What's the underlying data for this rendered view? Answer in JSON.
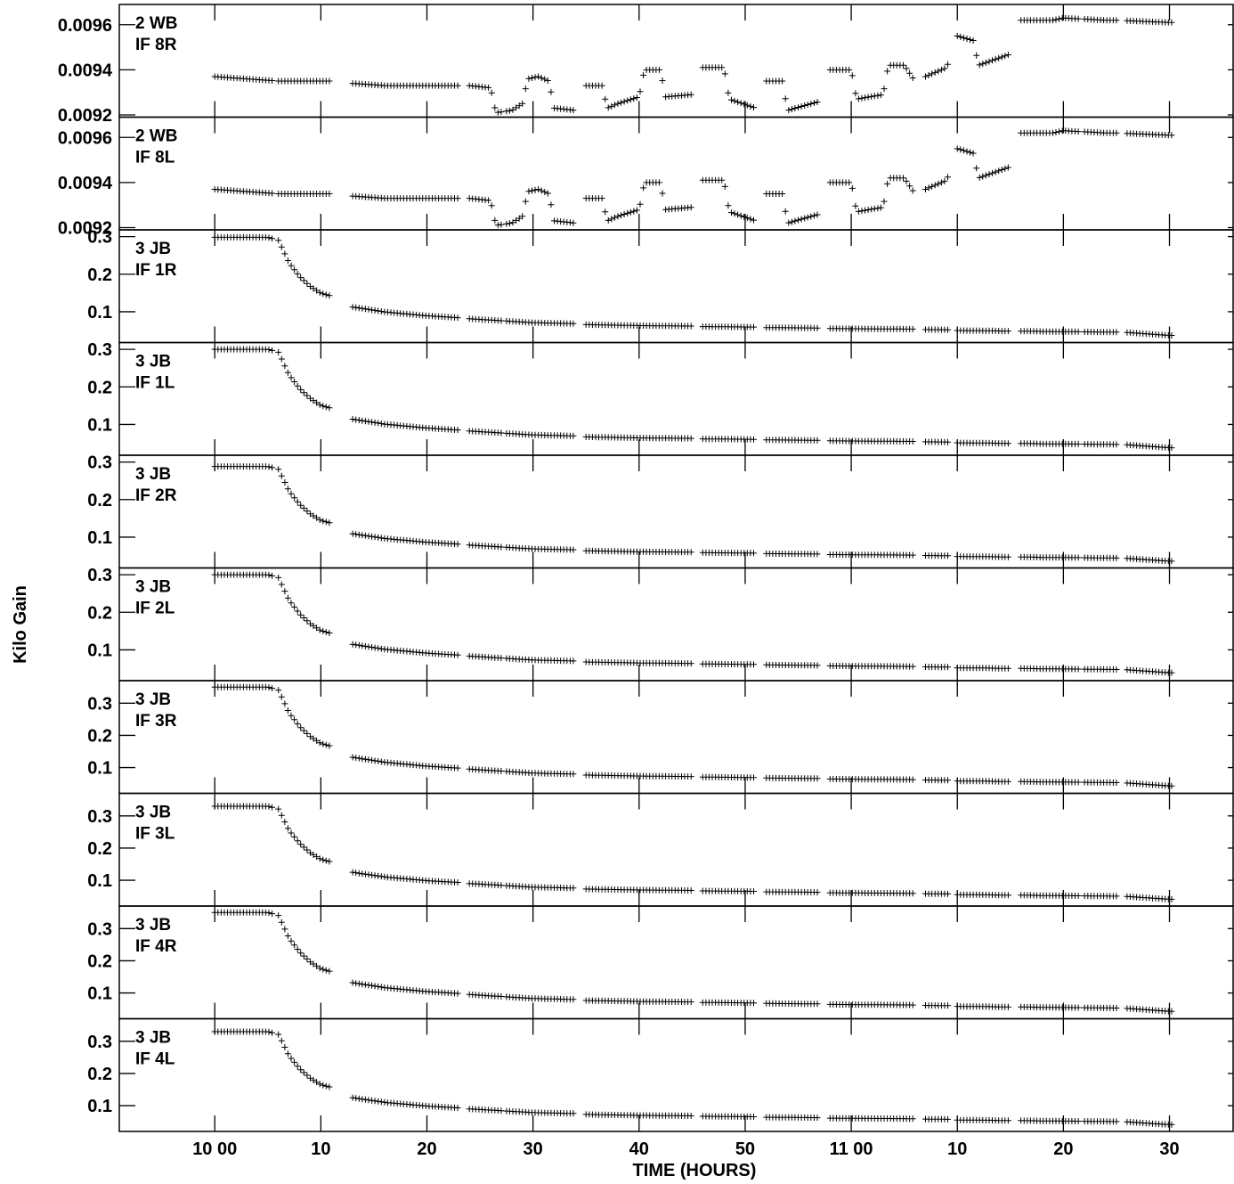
{
  "chart_data": {
    "type": "scatter",
    "marker": "plus",
    "xlabel": "TIME (HOURS)",
    "ylabel": "Kilo Gain",
    "x_range_minutes": [
      -6,
      60
    ],
    "x_ticks": [
      {
        "t": 0,
        "label": "10 00"
      },
      {
        "t": 10,
        "label": "10"
      },
      {
        "t": 20,
        "label": "20"
      },
      {
        "t": 30,
        "label": "30"
      },
      {
        "t": 40,
        "label": "40"
      },
      {
        "t": 50,
        "label": "50"
      },
      {
        "t": 60,
        "label": "11 00"
      },
      {
        "t": 70,
        "label": "10"
      },
      {
        "t": 80,
        "label": "20"
      },
      {
        "t": 90,
        "label": "30"
      }
    ],
    "x_range": [
      -9,
      96
    ],
    "panels": [
      {
        "label1": "2 WB",
        "label2": "IF 8R",
        "ylim": [
          0.00919,
          0.00969
        ],
        "yticks": [
          {
            "v": 0.0092,
            "label": "0.0092"
          },
          {
            "v": 0.0094,
            "label": "0.0094"
          },
          {
            "v": 0.0096,
            "label": "0.0096"
          }
        ],
        "profile": "wb"
      },
      {
        "label1": "2 WB",
        "label2": "IF 8L",
        "ylim": [
          0.00919,
          0.00969
        ],
        "yticks": [
          {
            "v": 0.0092,
            "label": "0.0092"
          },
          {
            "v": 0.0094,
            "label": "0.0094"
          },
          {
            "v": 0.0096,
            "label": "0.0096"
          }
        ],
        "profile": "wb"
      },
      {
        "label1": "3 JB",
        "label2": "IF 1R",
        "ylim": [
          0.018,
          0.318
        ],
        "yticks": [
          {
            "v": 0.1,
            "label": "0.1"
          },
          {
            "v": 0.2,
            "label": "0.2"
          },
          {
            "v": 0.3,
            "label": "0.3"
          }
        ],
        "profile": "jb",
        "start": 0.298,
        "end": 0.037
      },
      {
        "label1": "3 JB",
        "label2": "IF 1L",
        "ylim": [
          0.018,
          0.318
        ],
        "yticks": [
          {
            "v": 0.1,
            "label": "0.1"
          },
          {
            "v": 0.2,
            "label": "0.2"
          },
          {
            "v": 0.3,
            "label": "0.3"
          }
        ],
        "profile": "jb",
        "start": 0.3,
        "end": 0.038
      },
      {
        "label1": "3 JB",
        "label2": "IF 2R",
        "ylim": [
          0.018,
          0.318
        ],
        "yticks": [
          {
            "v": 0.1,
            "label": "0.1"
          },
          {
            "v": 0.2,
            "label": "0.2"
          },
          {
            "v": 0.3,
            "label": "0.3"
          }
        ],
        "profile": "jb",
        "start": 0.288,
        "end": 0.036
      },
      {
        "label1": "3 JB",
        "label2": "IF 2L",
        "ylim": [
          0.018,
          0.318
        ],
        "yticks": [
          {
            "v": 0.1,
            "label": "0.1"
          },
          {
            "v": 0.2,
            "label": "0.2"
          },
          {
            "v": 0.3,
            "label": "0.3"
          }
        ],
        "profile": "jb",
        "start": 0.3,
        "end": 0.039
      },
      {
        "label1": "3 JB",
        "label2": "IF 3R",
        "ylim": [
          0.02,
          0.37
        ],
        "yticks": [
          {
            "v": 0.1,
            "label": "0.1"
          },
          {
            "v": 0.2,
            "label": "0.2"
          },
          {
            "v": 0.3,
            "label": "0.3"
          }
        ],
        "profile": "jb",
        "start": 0.35,
        "end": 0.043
      },
      {
        "label1": "3 JB",
        "label2": "IF 3L",
        "ylim": [
          0.02,
          0.37
        ],
        "yticks": [
          {
            "v": 0.1,
            "label": "0.1"
          },
          {
            "v": 0.2,
            "label": "0.2"
          },
          {
            "v": 0.3,
            "label": "0.3"
          }
        ],
        "profile": "jb",
        "start": 0.33,
        "end": 0.041
      },
      {
        "label1": "3 JB",
        "label2": "IF 4R",
        "ylim": [
          0.02,
          0.37
        ],
        "yticks": [
          {
            "v": 0.1,
            "label": "0.1"
          },
          {
            "v": 0.2,
            "label": "0.2"
          },
          {
            "v": 0.3,
            "label": "0.3"
          }
        ],
        "profile": "jb",
        "start": 0.35,
        "end": 0.043
      },
      {
        "label1": "3 JB",
        "label2": "IF 4L",
        "ylim": [
          0.02,
          0.37
        ],
        "yticks": [
          {
            "v": 0.1,
            "label": "0.1"
          },
          {
            "v": 0.2,
            "label": "0.2"
          },
          {
            "v": 0.3,
            "label": "0.3"
          }
        ],
        "profile": "jb",
        "start": 0.33,
        "end": 0.041
      }
    ],
    "wb_series": [
      [
        0,
        0.00937
      ],
      [
        3,
        0.00936
      ],
      [
        6,
        0.00935
      ],
      [
        8,
        0.00935
      ],
      [
        11,
        0.00935
      ],
      [
        13,
        0.00934
      ],
      [
        16,
        0.00933
      ],
      [
        20,
        0.00933
      ],
      [
        23,
        0.00933
      ],
      [
        24,
        0.00933
      ],
      [
        26,
        0.00932
      ],
      [
        26.5,
        0.00921
      ],
      [
        28,
        0.00922
      ],
      [
        29,
        0.00925
      ],
      [
        29.5,
        0.00936
      ],
      [
        30.5,
        0.00937
      ],
      [
        31.5,
        0.00935
      ],
      [
        32,
        0.00923
      ],
      [
        34,
        0.00922
      ],
      [
        35,
        0.00933
      ],
      [
        36.5,
        0.00933
      ],
      [
        37,
        0.00923
      ],
      [
        38,
        0.00925
      ],
      [
        40,
        0.00928
      ],
      [
        40.5,
        0.0094
      ],
      [
        42,
        0.0094
      ],
      [
        42.5,
        0.00928
      ],
      [
        45,
        0.00929
      ],
      [
        46,
        0.00941
      ],
      [
        48,
        0.00941
      ],
      [
        48.5,
        0.00927
      ],
      [
        51,
        0.00923
      ],
      [
        52,
        0.00935
      ],
      [
        53.5,
        0.00935
      ],
      [
        54,
        0.00922
      ],
      [
        57,
        0.00926
      ],
      [
        58,
        0.0094
      ],
      [
        60,
        0.0094
      ],
      [
        60.5,
        0.00927
      ],
      [
        63,
        0.00929
      ],
      [
        63.5,
        0.00942
      ],
      [
        65,
        0.00942
      ],
      [
        66,
        0.00935
      ],
      [
        69,
        0.00941
      ],
      [
        70,
        0.00955
      ],
      [
        71.5,
        0.00953
      ],
      [
        72,
        0.00942
      ],
      [
        75,
        0.00947
      ],
      [
        76,
        0.00962
      ],
      [
        79,
        0.00962
      ],
      [
        80,
        0.00963
      ],
      [
        84,
        0.00962
      ],
      [
        85,
        0.00962
      ],
      [
        90,
        0.00961
      ]
    ],
    "jb_series": [
      [
        0,
        1.0
      ],
      [
        5,
        1.0
      ],
      [
        6,
        0.97
      ],
      [
        7,
        0.74
      ],
      [
        8,
        0.6
      ],
      [
        9,
        0.5
      ],
      [
        10,
        0.43
      ],
      [
        11,
        0.4
      ],
      [
        13,
        0.29
      ],
      [
        16,
        0.24
      ],
      [
        20,
        0.2
      ],
      [
        23,
        0.18
      ],
      [
        24,
        0.17
      ],
      [
        27,
        0.15
      ],
      [
        30,
        0.13
      ],
      [
        34,
        0.12
      ],
      [
        35,
        0.11
      ],
      [
        40,
        0.1
      ],
      [
        45,
        0.095
      ],
      [
        46,
        0.09
      ],
      [
        51,
        0.085
      ],
      [
        52,
        0.08
      ],
      [
        57,
        0.075
      ],
      [
        58,
        0.07
      ],
      [
        62,
        0.067
      ],
      [
        66,
        0.064
      ],
      [
        67,
        0.06
      ],
      [
        69,
        0.058
      ],
      [
        70,
        0.05
      ],
      [
        73,
        0.048
      ],
      [
        74,
        0.045
      ],
      [
        77,
        0.043
      ],
      [
        78,
        0.04
      ],
      [
        81,
        0.038
      ],
      [
        83,
        0.035
      ],
      [
        85.5,
        0.033
      ],
      [
        86,
        0.03
      ],
      [
        90,
        0.0
      ]
    ],
    "segments": [
      [
        0,
        5.5
      ],
      [
        6,
        11
      ],
      [
        13,
        23
      ],
      [
        24,
        27
      ],
      [
        27.5,
        34
      ],
      [
        35,
        45
      ],
      [
        46,
        51
      ],
      [
        52,
        57
      ],
      [
        58,
        66
      ],
      [
        67,
        69.2
      ],
      [
        70,
        75
      ],
      [
        76,
        81.5
      ],
      [
        82,
        85.2
      ],
      [
        86,
        90.3
      ]
    ]
  }
}
